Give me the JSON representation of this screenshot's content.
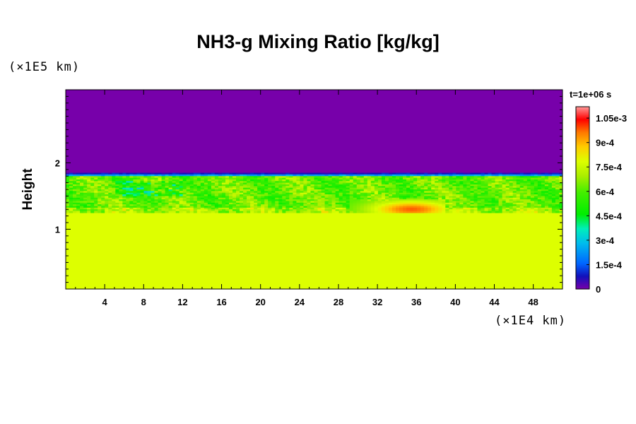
{
  "chart_data": {
    "type": "heatmap",
    "title": "NH3-g Mixing Ratio [kg/kg]",
    "ylabel": "Height",
    "yunit": "(×1E5 km)",
    "xunit": "(×1E4 km)",
    "time_label": "t=1e+06 s",
    "xlim": [
      0,
      51
    ],
    "ylim": [
      0.1,
      3.1
    ],
    "x_ticks": [
      4,
      8,
      12,
      16,
      20,
      24,
      28,
      32,
      36,
      40,
      44,
      48
    ],
    "y_ticks": [
      1,
      2
    ],
    "colorbar": {
      "min": 0,
      "max": 0.00112,
      "tick_values": [
        0,
        0.00015,
        0.0003,
        0.00045,
        0.0006,
        0.00075,
        0.0009,
        0.00105
      ],
      "tick_labels": [
        "0",
        "1.5e-4",
        "3e-4",
        "4.5e-4",
        "6e-4",
        "7.5e-4",
        "9e-4",
        "1.05e-3"
      ]
    },
    "fields": {
      "upper_value": 0,
      "upper_color": "#7700aa",
      "lower_value": 0.00078,
      "lower_color": "#ddff00",
      "cloud_top_height": 1.85,
      "cloud_base_height": 1.25,
      "mid_layer_value": 0.00062,
      "high_value_region": {
        "x_range": [
          29,
          39
        ],
        "y_range": [
          1.15,
          1.45
        ],
        "peak": 0.00098
      }
    }
  }
}
